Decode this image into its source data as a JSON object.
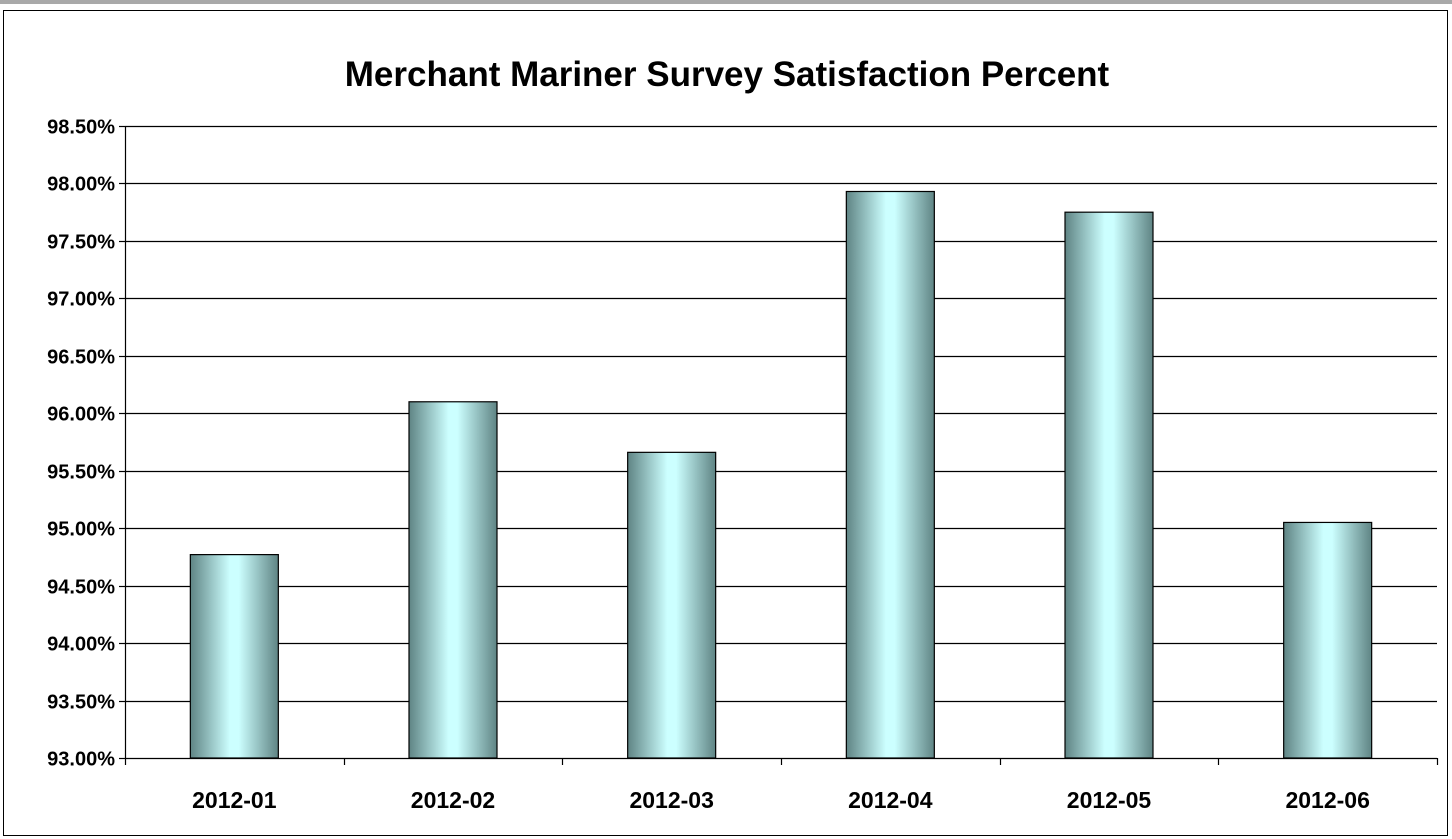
{
  "chart_data": {
    "type": "bar",
    "title": "Merchant Mariner Survey Satisfaction Percent",
    "xlabel": "",
    "ylabel": "",
    "categories": [
      "2012-01",
      "2012-02",
      "2012-03",
      "2012-04",
      "2012-05",
      "2012-06"
    ],
    "values": [
      94.77,
      96.1,
      95.66,
      97.93,
      97.75,
      95.05
    ],
    "ylim": [
      93.0,
      98.5
    ],
    "yticks": [
      93.0,
      93.5,
      94.0,
      94.5,
      95.0,
      95.5,
      96.0,
      96.5,
      97.0,
      97.5,
      98.0,
      98.5
    ],
    "ytick_labels": [
      "93.00%",
      "93.50%",
      "94.00%",
      "94.50%",
      "95.00%",
      "95.50%",
      "96.00%",
      "96.50%",
      "97.00%",
      "97.50%",
      "98.00%",
      "98.50%"
    ],
    "grid": true,
    "legend": "none",
    "colors": {
      "bar_light": "#ccffff",
      "bar_dark": "#5f8484",
      "gridline": "#000000",
      "frame": "#a9a9a9"
    }
  }
}
